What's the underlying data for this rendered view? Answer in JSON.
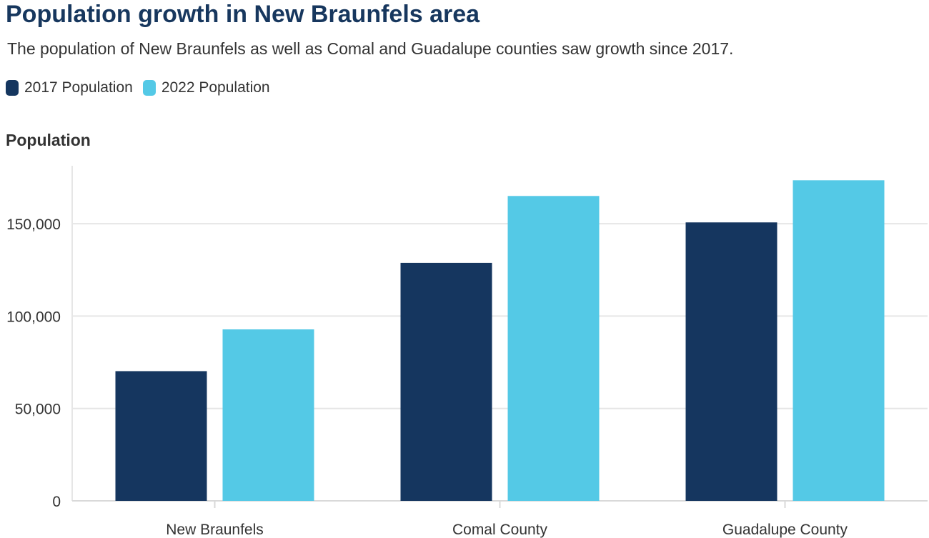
{
  "chart_data": {
    "type": "bar",
    "title": "Population growth in New Braunfels area",
    "subtitle": "The population of New Braunfels as well as Comal and Guadalupe counties saw growth since 2017.",
    "ylabel": "Population",
    "xlabel": "",
    "categories": [
      "New Braunfels",
      "Comal County",
      "Guadalupe County"
    ],
    "series": [
      {
        "name": "2017 Population",
        "color": "#15365f",
        "values": [
          70200,
          128800,
          150700
        ]
      },
      {
        "name": "2022 Population",
        "color": "#54c9e6",
        "values": [
          92800,
          165000,
          173500
        ]
      }
    ],
    "ylim": [
      0,
      180000
    ],
    "yticks": [
      0,
      50000,
      100000,
      150000
    ],
    "ytick_labels": [
      "0",
      "50,000",
      "100,000",
      "150,000"
    ],
    "grid": true,
    "legend_position": "top-left"
  }
}
